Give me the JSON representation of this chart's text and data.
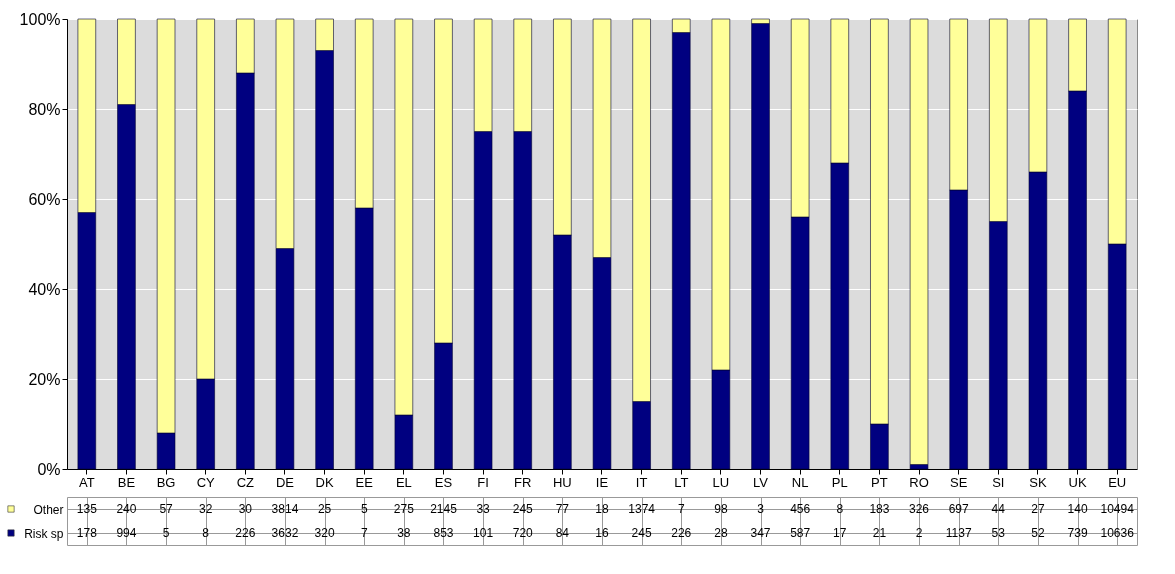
{
  "chart_data": {
    "type": "bar",
    "stacked": true,
    "categories": [
      "AT",
      "BE",
      "BG",
      "CY",
      "CZ",
      "DE",
      "DK",
      "EE",
      "EL",
      "ES",
      "FI",
      "FR",
      "HU",
      "IE",
      "IT",
      "LT",
      "LU",
      "LV",
      "NL",
      "PL",
      "PT",
      "RO",
      "SE",
      "SI",
      "SK",
      "UK",
      "EU"
    ],
    "series": [
      {
        "name": "Risk sp",
        "color": "#000080",
        "values": [
          57,
          81,
          8,
          20,
          88,
          49,
          93,
          58,
          12,
          28,
          75,
          75,
          52,
          47,
          15,
          97,
          22,
          99,
          56,
          68,
          10,
          1,
          62,
          55,
          66,
          84,
          50
        ]
      },
      {
        "name": "Other",
        "color": "#ffff99",
        "values": [
          43,
          19,
          92,
          80,
          12,
          51,
          7,
          42,
          88,
          72,
          25,
          25,
          48,
          53,
          85,
          3,
          78,
          1,
          44,
          32,
          90,
          99,
          38,
          45,
          34,
          16,
          50
        ]
      }
    ],
    "annotations": [
      "135",
      "240",
      "57",
      "32",
      "30",
      "3814",
      "25",
      "5",
      "275",
      "2145",
      "33",
      "245",
      "77",
      "18",
      "1374",
      "7",
      "98",
      "3",
      "456",
      "8",
      "183",
      "326",
      "697",
      "44",
      "27",
      "140",
      "10494",
      "178",
      "994",
      "5",
      "8",
      "226",
      "3632",
      "320",
      "7",
      "38",
      "853",
      "101",
      "720",
      "84",
      "16",
      "245",
      "226",
      "28",
      "347",
      "587",
      "17",
      "21",
      "2",
      "1137",
      "53",
      "52",
      "739",
      "10636"
    ],
    "ylim": [
      0,
      100
    ],
    "yticks": [
      {
        "value": 0,
        "label": "0%"
      },
      {
        "value": 20,
        "label": "20%"
      },
      {
        "value": 40,
        "label": "40%"
      },
      {
        "value": 60,
        "label": "60%"
      },
      {
        "value": 80,
        "label": "80%"
      },
      {
        "value": 100,
        "label": "100%"
      }
    ],
    "grid": "y",
    "legend": "bottom left"
  }
}
